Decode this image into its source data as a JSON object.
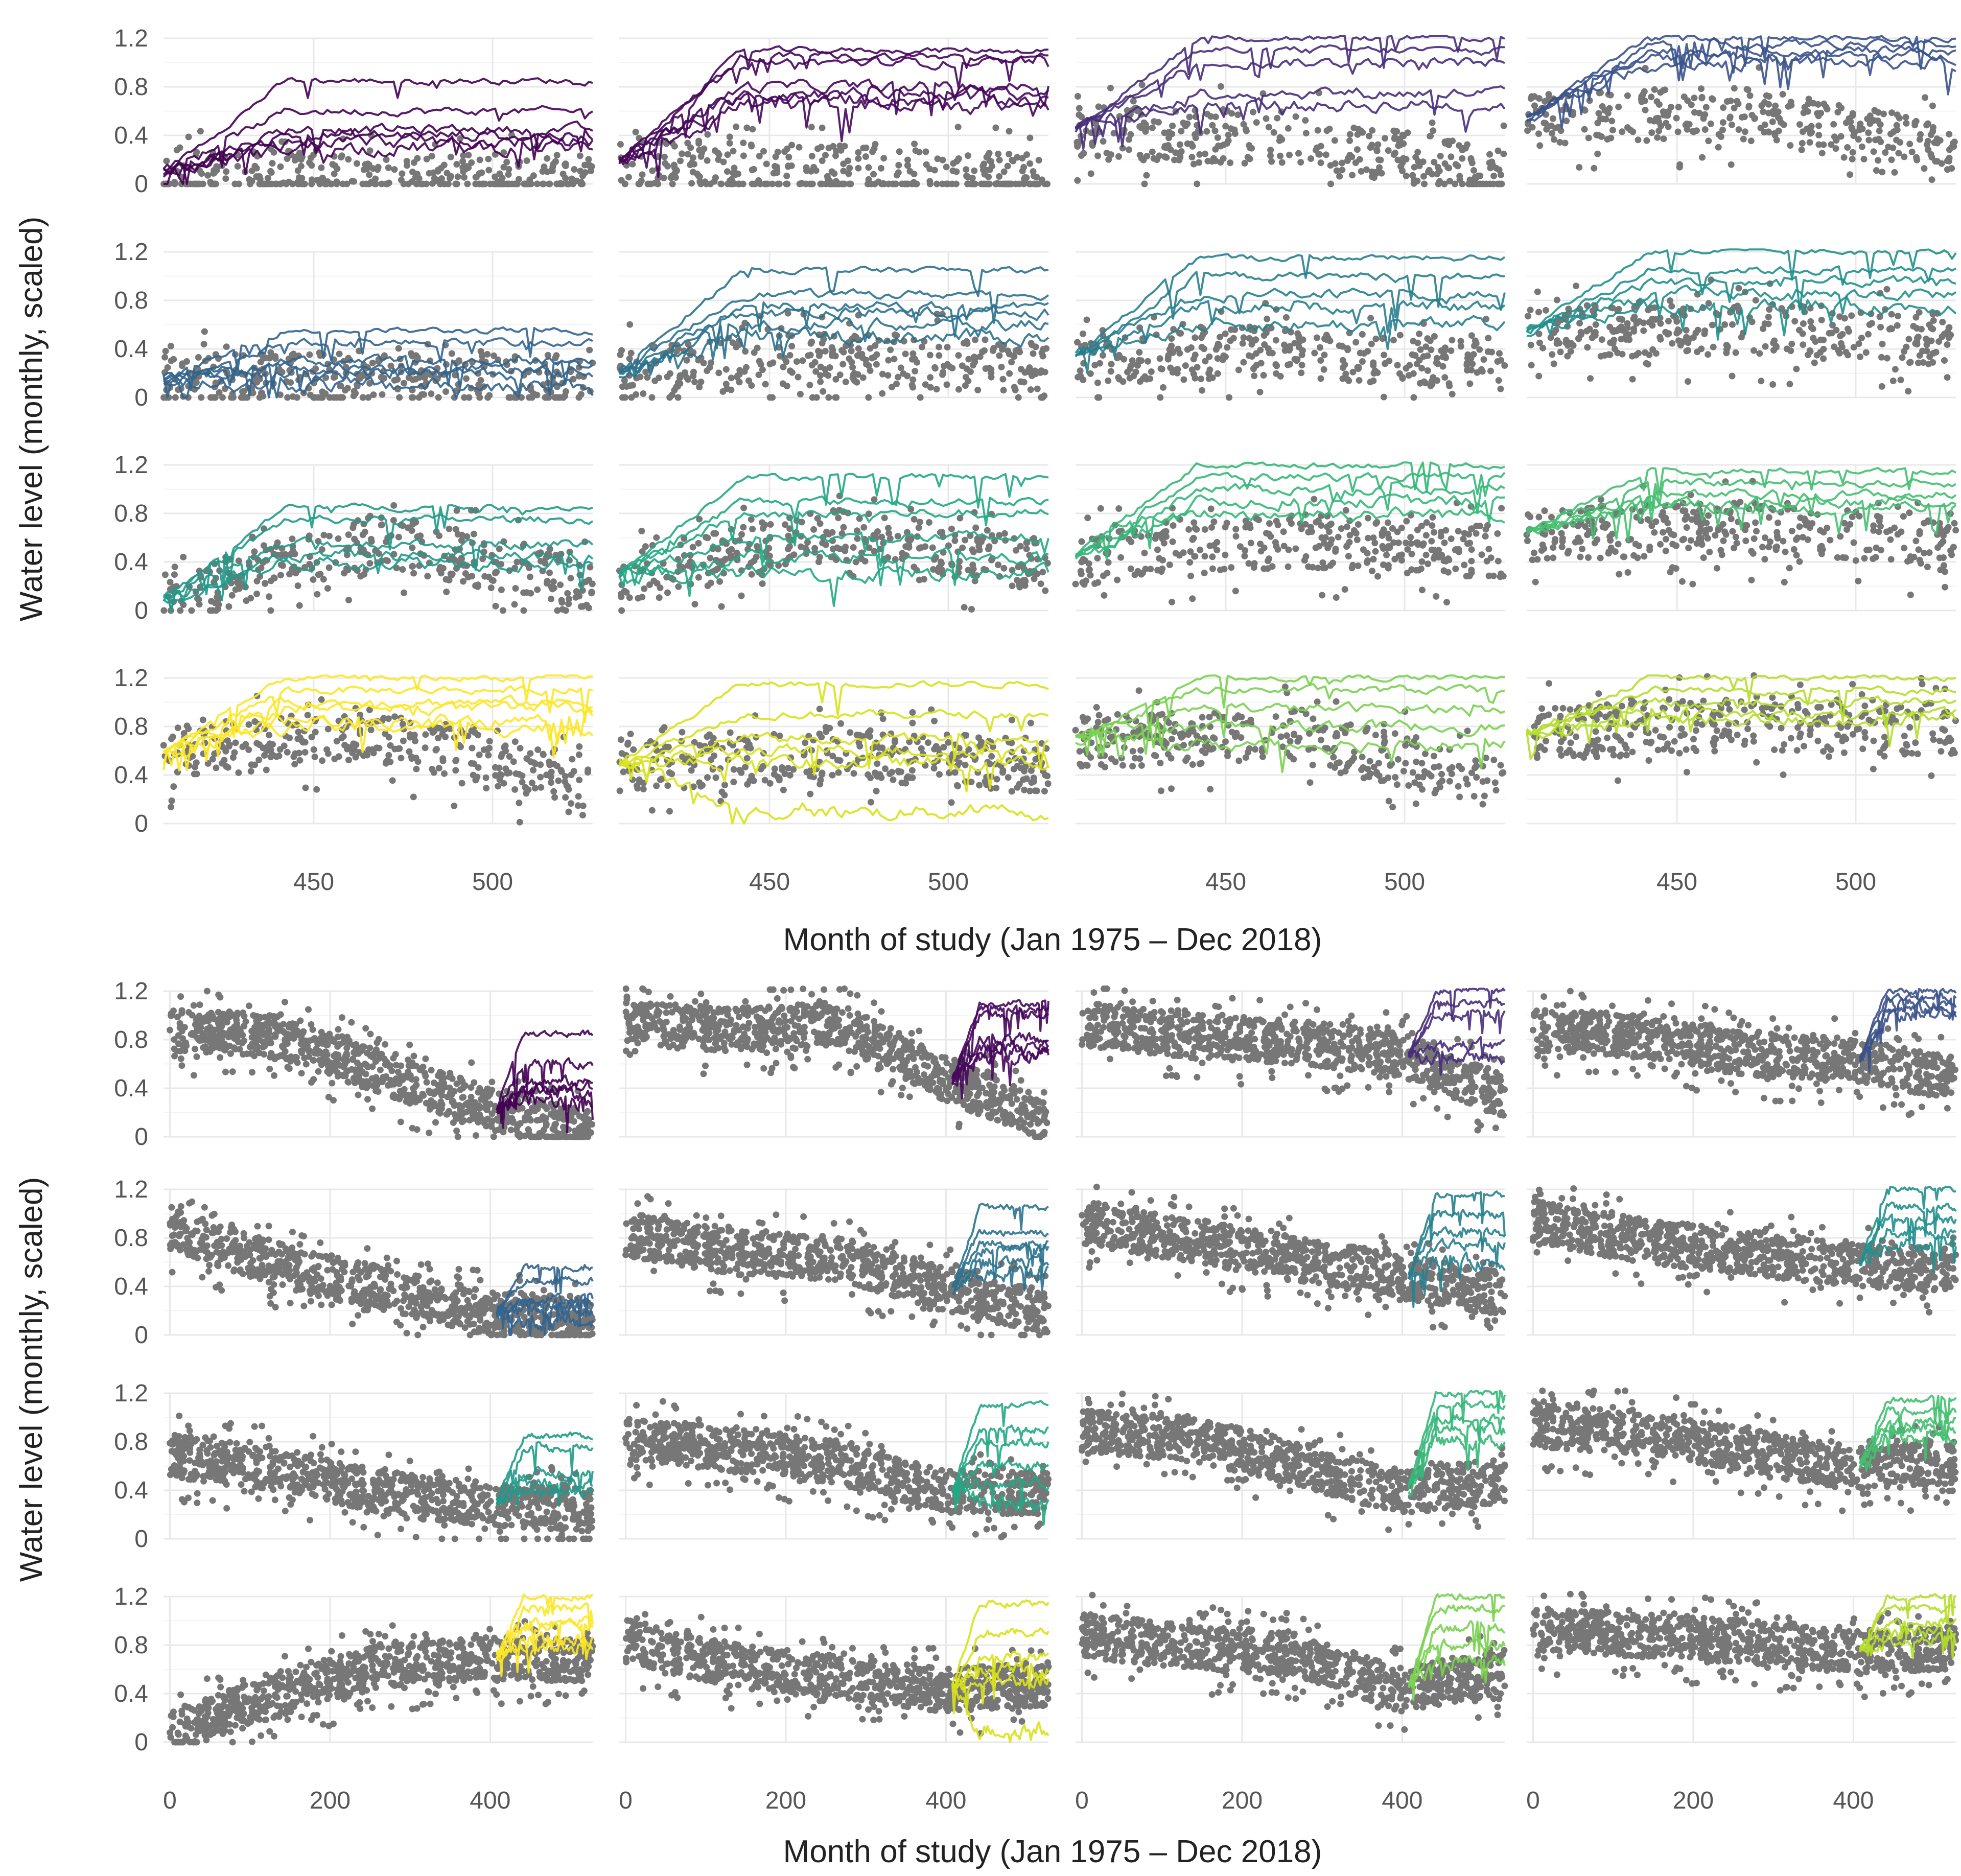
{
  "chart_data": [
    {
      "type": "scatter",
      "figure": "top",
      "description_label": "",
      "xlabel": "Month of study (Jan 1975 – Dec 2018)",
      "ylabel": "Water level (monthly, scaled)",
      "xlim": [
        408,
        528
      ],
      "ylim": [
        0,
        1.2
      ],
      "xticks": [
        "450",
        "500"
      ],
      "yticks": [
        "0",
        "0.4",
        "0.8",
        "1.2"
      ],
      "grid": true,
      "layout": "4x4",
      "panels": [
        {
          "row": 0,
          "col": 0,
          "color": "#440154",
          "obs_base": [
            0.1,
            0.08,
            0.05
          ],
          "sim_levels": [
            0.85,
            0.6,
            0.45,
            0.4,
            0.35,
            0.3
          ]
        },
        {
          "row": 0,
          "col": 1,
          "color": "#46085c",
          "obs_base": [
            0.18,
            0.12,
            0.05
          ],
          "sim_levels": [
            1.1,
            1.05,
            1.0,
            0.8,
            0.75,
            0.7,
            0.65
          ]
        },
        {
          "row": 0,
          "col": 2,
          "color": "#472d7b",
          "obs_base": [
            0.45,
            0.4,
            0.1
          ],
          "sim_levels": [
            1.2,
            1.1,
            1.0,
            0.75,
            0.65
          ]
        },
        {
          "row": 0,
          "col": 3,
          "color": "#3b528b",
          "obs_base": [
            0.55,
            0.6,
            0.3
          ],
          "sim_levels": [
            1.2,
            1.15,
            1.1,
            1.05,
            1.0
          ]
        },
        {
          "row": 1,
          "col": 0,
          "color": "#32648e",
          "obs_base": [
            0.15,
            0.2,
            0.15
          ],
          "sim_levels": [
            0.55,
            0.45,
            0.3,
            0.25,
            0.2,
            0.1
          ]
        },
        {
          "row": 1,
          "col": 1,
          "color": "#2c728e",
          "obs_base": [
            0.2,
            0.35,
            0.25
          ],
          "sim_levels": [
            1.05,
            0.85,
            0.75,
            0.7,
            0.6,
            0.5
          ]
        },
        {
          "row": 1,
          "col": 2,
          "color": "#27808e",
          "obs_base": [
            0.35,
            0.4,
            0.3
          ],
          "sim_levels": [
            1.15,
            1.0,
            0.85,
            0.75,
            0.6
          ]
        },
        {
          "row": 1,
          "col": 3,
          "color": "#21908d",
          "obs_base": [
            0.55,
            0.6,
            0.5
          ],
          "sim_levels": [
            1.2,
            1.05,
            0.95,
            0.85,
            0.75
          ]
        },
        {
          "row": 2,
          "col": 0,
          "color": "#1f9a8a",
          "obs_base": [
            0.1,
            0.6,
            0.25
          ],
          "sim_levels": [
            0.85,
            0.75,
            0.55,
            0.45,
            0.4
          ]
        },
        {
          "row": 2,
          "col": 1,
          "color": "#22a884",
          "obs_base": [
            0.3,
            0.65,
            0.4
          ],
          "sim_levels": [
            1.1,
            0.9,
            0.8,
            0.6,
            0.45,
            0.3
          ]
        },
        {
          "row": 2,
          "col": 2,
          "color": "#35b779",
          "obs_base": [
            0.45,
            0.6,
            0.5
          ],
          "sim_levels": [
            1.2,
            1.1,
            1.0,
            0.9,
            0.8
          ]
        },
        {
          "row": 2,
          "col": 3,
          "color": "#44bf70",
          "obs_base": [
            0.65,
            0.7,
            0.55
          ],
          "sim_levels": [
            1.15,
            1.05,
            0.95,
            0.9,
            0.85
          ]
        },
        {
          "row": 3,
          "col": 0,
          "color": "#fde725",
          "obs_base": [
            0.6,
            0.75,
            0.35
          ],
          "sim_levels": [
            1.2,
            1.1,
            1.0,
            0.95,
            0.85,
            0.8
          ]
        },
        {
          "row": 3,
          "col": 1,
          "color": "#d8e219",
          "obs_base": [
            0.5,
            0.6,
            0.5
          ],
          "sim_levels": [
            1.15,
            0.9,
            0.7,
            0.6,
            0.5,
            0.1
          ]
        },
        {
          "row": 3,
          "col": 2,
          "color": "#7ad151",
          "obs_base": [
            0.7,
            0.75,
            0.35
          ],
          "sim_levels": [
            1.2,
            1.1,
            0.95,
            0.8,
            0.65
          ]
        },
        {
          "row": 3,
          "col": 3,
          "color": "#b5de2b",
          "obs_base": [
            0.75,
            0.85,
            0.8
          ],
          "sim_levels": [
            1.2,
            1.1,
            1.0,
            0.9,
            0.85
          ]
        }
      ]
    },
    {
      "type": "scatter",
      "figure": "bottom",
      "xlabel": "Month of study (Jan 1975 – Dec 2018)",
      "ylabel": "Water level (monthly, scaled)",
      "xlim": [
        -8,
        528
      ],
      "ylim": [
        0,
        1.2
      ],
      "xticks": [
        "0",
        "200",
        "400"
      ],
      "yticks": [
        "0",
        "0.4",
        "0.8",
        "1.2"
      ],
      "grid": true,
      "sim_start_month": 408,
      "layout": "4x4",
      "panels": [
        {
          "row": 0,
          "col": 0,
          "color": "#440154",
          "obs_profile": [
            0.9,
            0.85,
            0.55,
            0.25,
            0.05
          ]
        },
        {
          "row": 0,
          "col": 1,
          "color": "#46085c",
          "obs_profile": [
            0.95,
            0.9,
            0.95,
            0.5,
            0.15
          ]
        },
        {
          "row": 0,
          "col": 2,
          "color": "#472d7b",
          "obs_profile": [
            0.95,
            0.85,
            0.8,
            0.7,
            0.35
          ]
        },
        {
          "row": 0,
          "col": 3,
          "color": "#3b528b",
          "obs_profile": [
            0.9,
            0.85,
            0.7,
            0.65,
            0.5
          ]
        },
        {
          "row": 1,
          "col": 0,
          "color": "#32648e",
          "obs_profile": [
            0.9,
            0.6,
            0.4,
            0.2,
            0.15
          ]
        },
        {
          "row": 1,
          "col": 1,
          "color": "#2c728e",
          "obs_profile": [
            0.85,
            0.7,
            0.65,
            0.4,
            0.2
          ]
        },
        {
          "row": 1,
          "col": 2,
          "color": "#27808e",
          "obs_profile": [
            0.95,
            0.8,
            0.65,
            0.5,
            0.35
          ]
        },
        {
          "row": 1,
          "col": 3,
          "color": "#21908d",
          "obs_profile": [
            0.95,
            0.8,
            0.7,
            0.6,
            0.55
          ]
        },
        {
          "row": 2,
          "col": 0,
          "color": "#1f9a8a",
          "obs_profile": [
            0.7,
            0.6,
            0.4,
            0.3,
            0.25
          ]
        },
        {
          "row": 2,
          "col": 1,
          "color": "#22a884",
          "obs_profile": [
            0.85,
            0.75,
            0.65,
            0.4,
            0.4
          ]
        },
        {
          "row": 2,
          "col": 2,
          "color": "#35b779",
          "obs_profile": [
            0.9,
            0.85,
            0.65,
            0.4,
            0.5
          ]
        },
        {
          "row": 2,
          "col": 3,
          "color": "#44bf70",
          "obs_profile": [
            0.95,
            0.9,
            0.75,
            0.6,
            0.65
          ]
        },
        {
          "row": 3,
          "col": 0,
          "color": "#fde725",
          "obs_profile": [
            0.1,
            0.4,
            0.65,
            0.7,
            0.7
          ]
        },
        {
          "row": 3,
          "col": 1,
          "color": "#d8e219",
          "obs_profile": [
            0.85,
            0.65,
            0.55,
            0.45,
            0.5
          ]
        },
        {
          "row": 3,
          "col": 2,
          "color": "#7ad151",
          "obs_profile": [
            0.9,
            0.8,
            0.75,
            0.45,
            0.6
          ]
        },
        {
          "row": 3,
          "col": 3,
          "color": "#b5de2b",
          "obs_profile": [
            0.95,
            0.9,
            0.85,
            0.75,
            0.8
          ]
        }
      ]
    }
  ]
}
